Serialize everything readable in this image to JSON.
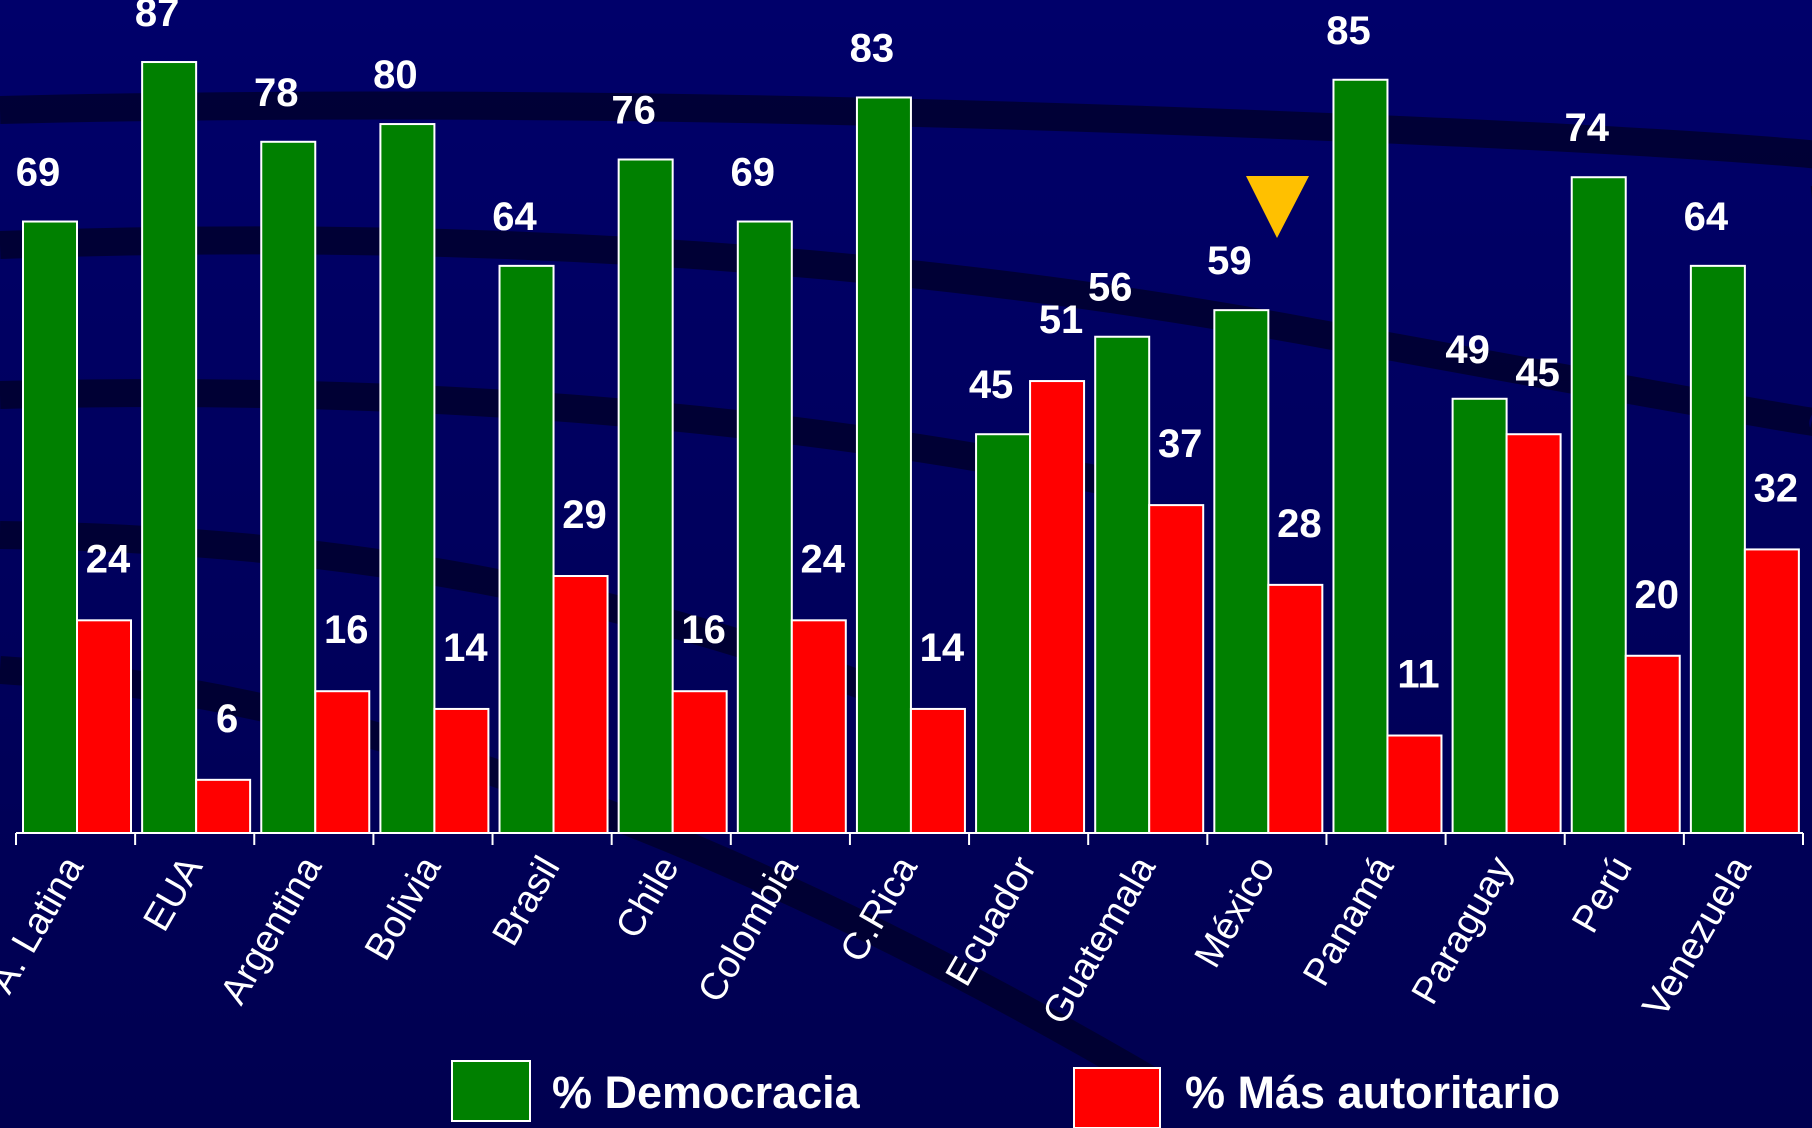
{
  "chart_data": {
    "type": "bar",
    "categories": [
      "A. Latina",
      "EUA",
      "Argentina",
      "Bolivia",
      "Brasil",
      "Chile",
      "Colombia",
      "C.Rica",
      "Ecuador",
      "Guatemala",
      "México",
      "Panamá",
      "Paraguay",
      "Perú",
      "Venezuela"
    ],
    "series": [
      {
        "name": "% Democracia",
        "color": "#008000",
        "values": [
          69,
          87,
          78,
          80,
          64,
          76,
          69,
          83,
          45,
          56,
          59,
          85,
          49,
          74,
          64
        ]
      },
      {
        "name": "% Más autoritario",
        "color": "#ff0000",
        "values": [
          24,
          6,
          16,
          14,
          29,
          16,
          24,
          14,
          51,
          37,
          28,
          11,
          45,
          20,
          32
        ]
      }
    ],
    "ylim": [
      0,
      94
    ]
  }
}
